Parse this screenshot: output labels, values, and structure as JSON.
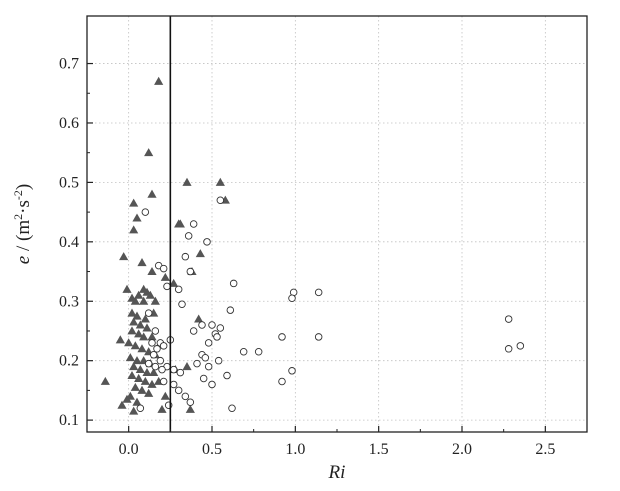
{
  "chart_data": {
    "type": "scatter",
    "title": "",
    "xlabel": "Ri",
    "ylabel_var": "e",
    "ylabel_sep": " / (",
    "ylabel_m": "m",
    "ylabel_m_exp": "2",
    "ylabel_dot": "·",
    "ylabel_s": "s",
    "ylabel_s_exp": "-2",
    "ylabel_close": ")",
    "xlim": [
      -0.25,
      2.75
    ],
    "ylim": [
      0.08,
      0.78
    ],
    "x_ticks": [
      0.0,
      0.5,
      1.0,
      1.5,
      2.0,
      2.5
    ],
    "x_tick_labels": [
      "0.0",
      "0.5",
      "1.0",
      "1.5",
      "2.0",
      "2.5"
    ],
    "y_ticks": [
      0.1,
      0.2,
      0.3,
      0.4,
      0.5,
      0.6,
      0.7
    ],
    "y_tick_labels": [
      "0.1",
      "0.2",
      "0.3",
      "0.4",
      "0.5",
      "0.6",
      "0.7"
    ],
    "grid": true,
    "reference_line_x": 0.25,
    "colors": {
      "triangle": "#555555",
      "circle_stroke": "#333333",
      "grid": "#c0c0c0",
      "axis": "#222222"
    },
    "series": [
      {
        "marker": "triangle",
        "points": [
          [
            0.18,
            0.67
          ],
          [
            0.12,
            0.55
          ],
          [
            0.14,
            0.48
          ],
          [
            0.35,
            0.5
          ],
          [
            0.55,
            0.5
          ],
          [
            0.58,
            0.47
          ],
          [
            0.03,
            0.465
          ],
          [
            0.05,
            0.44
          ],
          [
            0.03,
            0.42
          ],
          [
            0.3,
            0.43
          ],
          [
            0.31,
            0.43
          ],
          [
            -0.03,
            0.375
          ],
          [
            0.08,
            0.365
          ],
          [
            0.14,
            0.35
          ],
          [
            0.22,
            0.34
          ],
          [
            0.38,
            0.35
          ],
          [
            0.43,
            0.38
          ],
          [
            0.27,
            0.33
          ],
          [
            -0.01,
            0.32
          ],
          [
            0.09,
            0.32
          ],
          [
            0.11,
            0.315
          ],
          [
            0.13,
            0.31
          ],
          [
            0.02,
            0.305
          ],
          [
            0.04,
            0.3
          ],
          [
            0.06,
            0.31
          ],
          [
            0.09,
            0.3
          ],
          [
            0.16,
            0.3
          ],
          [
            0.02,
            0.28
          ],
          [
            0.05,
            0.275
          ],
          [
            0.1,
            0.27
          ],
          [
            0.15,
            0.28
          ],
          [
            0.42,
            0.27
          ],
          [
            0.03,
            0.265
          ],
          [
            0.07,
            0.26
          ],
          [
            0.11,
            0.255
          ],
          [
            0.02,
            0.25
          ],
          [
            0.06,
            0.245
          ],
          [
            0.09,
            0.24
          ],
          [
            0.14,
            0.24
          ],
          [
            -0.05,
            0.235
          ],
          [
            0.0,
            0.23
          ],
          [
            0.04,
            0.225
          ],
          [
            0.08,
            0.22
          ],
          [
            0.12,
            0.215
          ],
          [
            0.16,
            0.21
          ],
          [
            0.01,
            0.205
          ],
          [
            0.05,
            0.2
          ],
          [
            0.09,
            0.2
          ],
          [
            0.13,
            0.195
          ],
          [
            0.03,
            0.19
          ],
          [
            0.07,
            0.185
          ],
          [
            0.11,
            0.18
          ],
          [
            0.15,
            0.18
          ],
          [
            0.35,
            0.19
          ],
          [
            0.28,
            0.185
          ],
          [
            0.02,
            0.175
          ],
          [
            0.06,
            0.17
          ],
          [
            0.1,
            0.165
          ],
          [
            0.14,
            0.16
          ],
          [
            0.18,
            0.165
          ],
          [
            -0.14,
            0.165
          ],
          [
            0.04,
            0.155
          ],
          [
            0.08,
            0.15
          ],
          [
            0.12,
            0.145
          ],
          [
            0.22,
            0.14
          ],
          [
            0.01,
            0.14
          ],
          [
            -0.01,
            0.135
          ],
          [
            0.05,
            0.13
          ],
          [
            -0.04,
            0.125
          ],
          [
            0.03,
            0.115
          ],
          [
            0.2,
            0.118
          ],
          [
            0.37,
            0.118
          ]
        ]
      },
      {
        "marker": "circle",
        "points": [
          [
            0.55,
            0.47
          ],
          [
            0.1,
            0.45
          ],
          [
            0.39,
            0.43
          ],
          [
            0.36,
            0.41
          ],
          [
            0.47,
            0.4
          ],
          [
            0.18,
            0.36
          ],
          [
            0.21,
            0.355
          ],
          [
            0.34,
            0.375
          ],
          [
            0.37,
            0.35
          ],
          [
            0.63,
            0.33
          ],
          [
            0.23,
            0.325
          ],
          [
            0.3,
            0.32
          ],
          [
            0.99,
            0.315
          ],
          [
            1.14,
            0.315
          ],
          [
            0.98,
            0.305
          ],
          [
            0.32,
            0.295
          ],
          [
            0.61,
            0.285
          ],
          [
            0.12,
            0.28
          ],
          [
            2.28,
            0.27
          ],
          [
            0.44,
            0.26
          ],
          [
            0.5,
            0.26
          ],
          [
            0.55,
            0.255
          ],
          [
            0.16,
            0.25
          ],
          [
            0.39,
            0.25
          ],
          [
            0.52,
            0.245
          ],
          [
            0.92,
            0.24
          ],
          [
            1.14,
            0.24
          ],
          [
            0.14,
            0.23
          ],
          [
            0.19,
            0.23
          ],
          [
            0.25,
            0.235
          ],
          [
            0.48,
            0.23
          ],
          [
            0.53,
            0.24
          ],
          [
            0.17,
            0.22
          ],
          [
            0.21,
            0.225
          ],
          [
            2.35,
            0.225
          ],
          [
            2.28,
            0.22
          ],
          [
            0.69,
            0.215
          ],
          [
            0.78,
            0.215
          ],
          [
            0.44,
            0.21
          ],
          [
            0.15,
            0.21
          ],
          [
            0.19,
            0.2
          ],
          [
            0.46,
            0.205
          ],
          [
            0.54,
            0.2
          ],
          [
            0.12,
            0.195
          ],
          [
            0.16,
            0.19
          ],
          [
            0.23,
            0.19
          ],
          [
            0.41,
            0.195
          ],
          [
            0.48,
            0.19
          ],
          [
            0.2,
            0.185
          ],
          [
            0.27,
            0.185
          ],
          [
            0.31,
            0.18
          ],
          [
            0.98,
            0.183
          ],
          [
            0.59,
            0.175
          ],
          [
            0.45,
            0.17
          ],
          [
            0.21,
            0.165
          ],
          [
            0.27,
            0.16
          ],
          [
            0.5,
            0.16
          ],
          [
            0.92,
            0.165
          ],
          [
            0.3,
            0.15
          ],
          [
            0.34,
            0.14
          ],
          [
            0.37,
            0.13
          ],
          [
            0.07,
            0.12
          ],
          [
            0.24,
            0.125
          ],
          [
            0.62,
            0.12
          ]
        ]
      }
    ]
  }
}
